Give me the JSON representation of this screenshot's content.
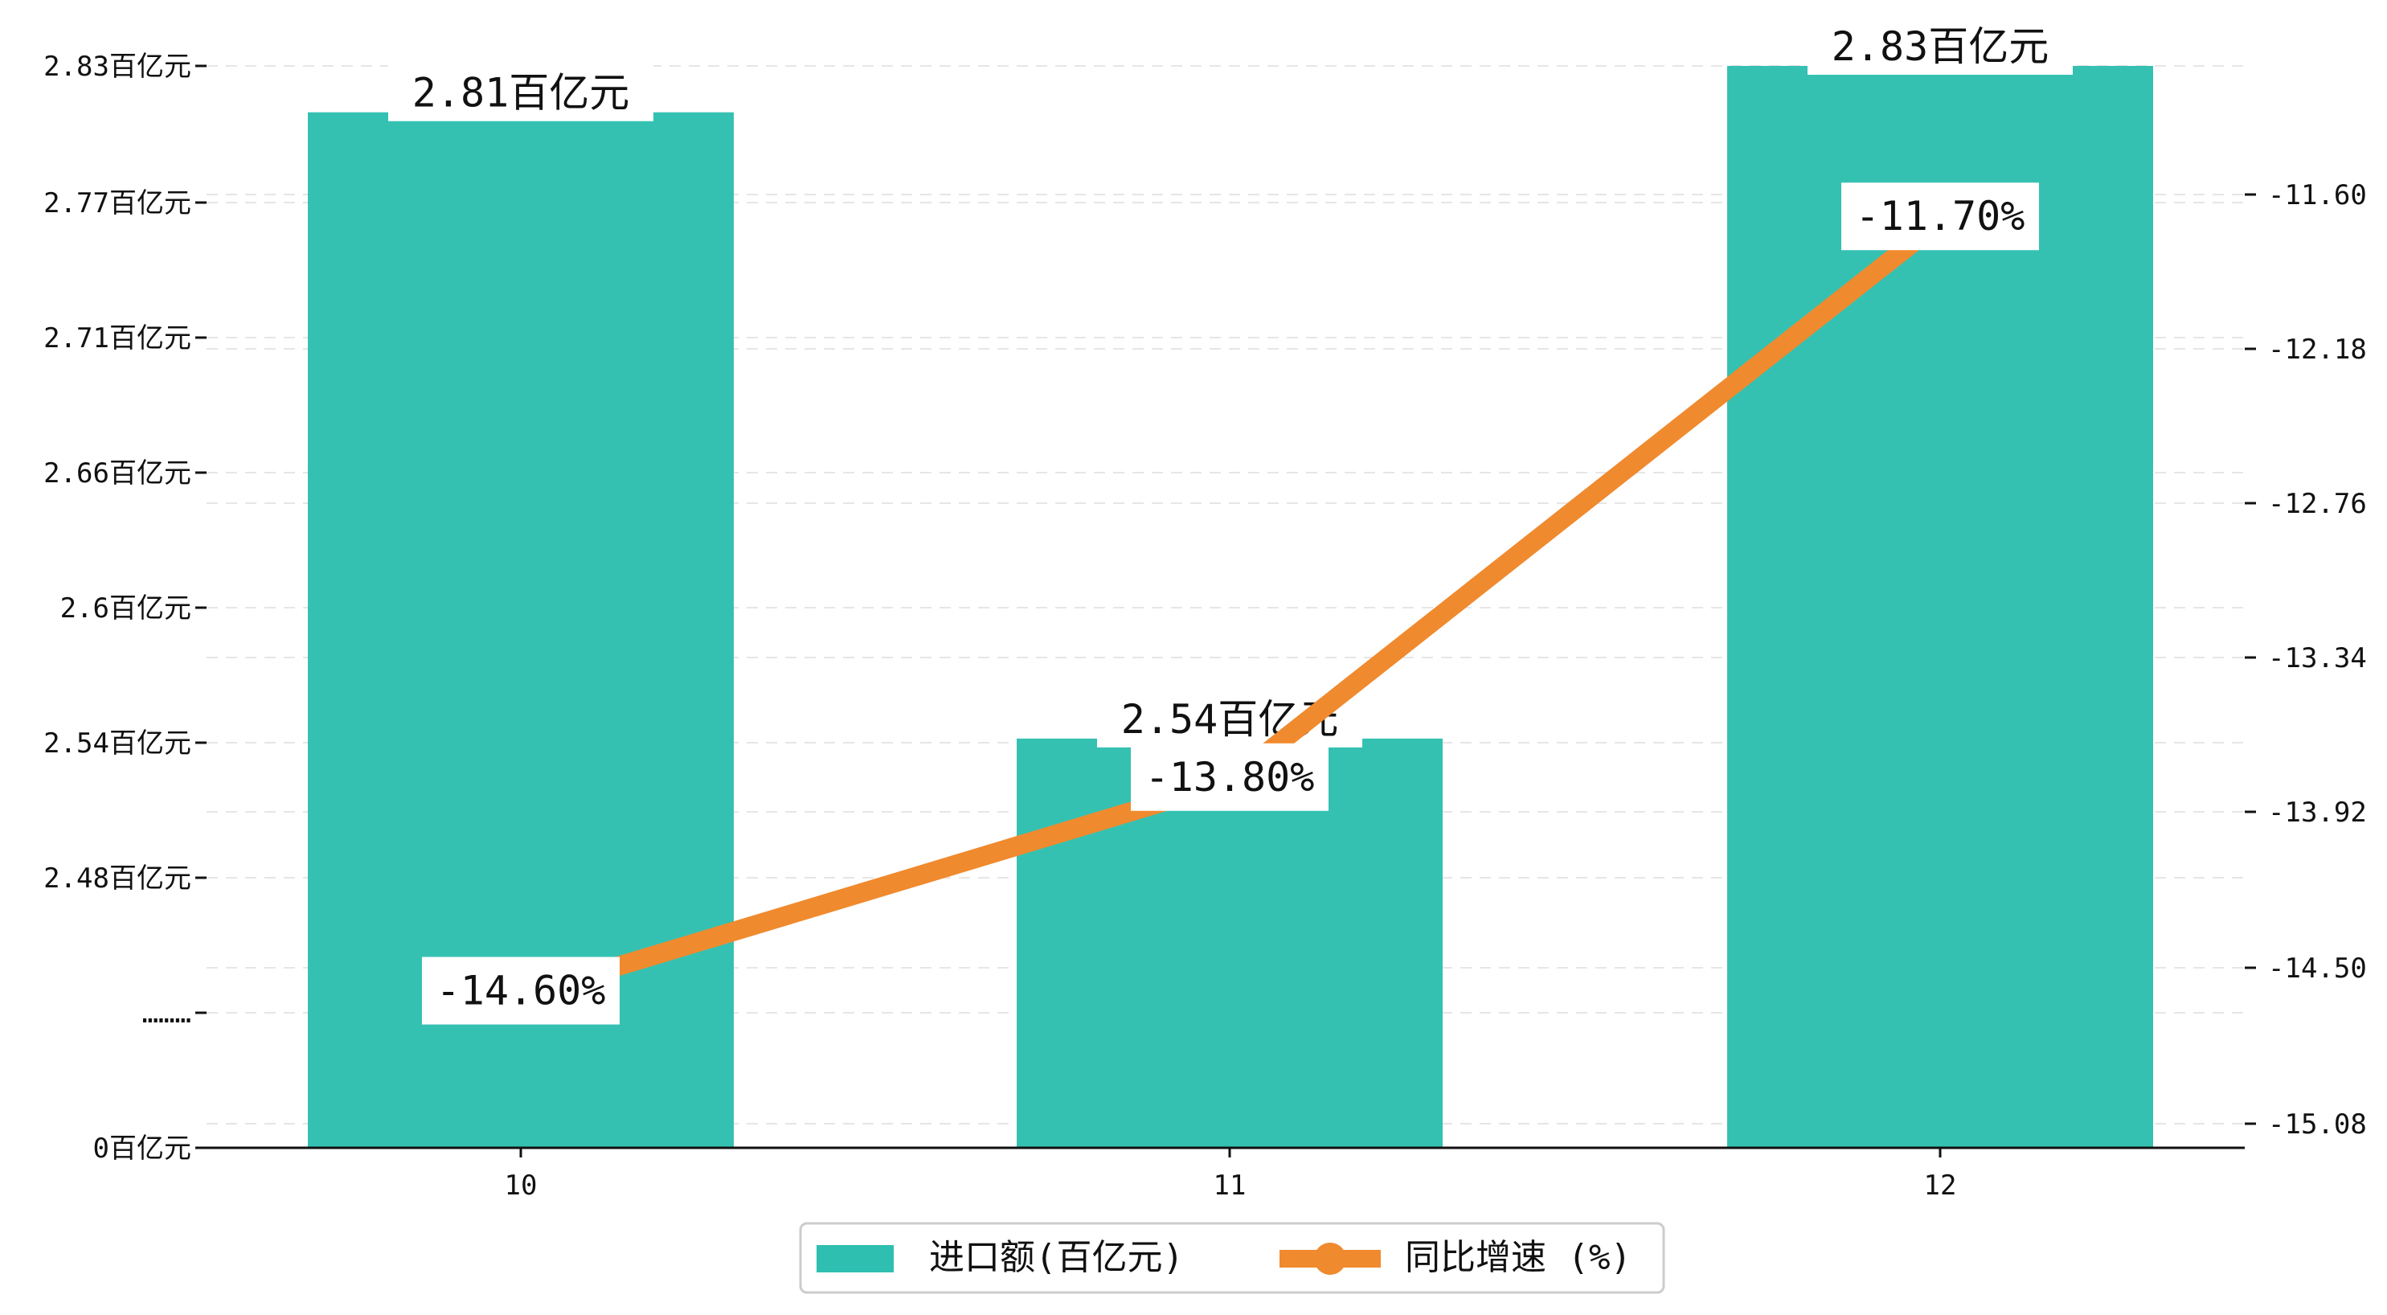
{
  "chart_data": {
    "type": "bar",
    "categories": [
      "10",
      "11",
      "12"
    ],
    "series": [
      {
        "name": "进口额(百亿元)",
        "kind": "bar",
        "axis": "left",
        "values": [
          2.81,
          2.54,
          2.83
        ],
        "labels": [
          "2.81百亿元",
          "2.54百亿元",
          "2.83百亿元"
        ],
        "color": "#2ebfb0"
      },
      {
        "name": "同比增速 (%)",
        "kind": "line",
        "axis": "right",
        "values": [
          -14.6,
          -13.8,
          -11.7
        ],
        "labels": [
          "-14.60%",
          "-13.80%",
          "-11.70%"
        ],
        "color": "#f08a2e"
      }
    ],
    "y_left": {
      "ticks": [
        {
          "label": "0百亿元",
          "value": 0
        },
        {
          "label": "………",
          "value": null
        },
        {
          "label": "2.48百亿元",
          "value": 2.48
        },
        {
          "label": "2.54百亿元",
          "value": 2.54
        },
        {
          "label": "2.6百亿元",
          "value": 2.6
        },
        {
          "label": "2.66百亿元",
          "value": 2.66
        },
        {
          "label": "2.71百亿元",
          "value": 2.71
        },
        {
          "label": "2.77百亿元",
          "value": 2.77
        },
        {
          "label": "2.83百亿元",
          "value": 2.83
        }
      ],
      "axis_break": true
    },
    "y_right": {
      "ticks": [
        "-15.08",
        "-14.50",
        "-13.92",
        "-13.34",
        "-12.76",
        "-12.18",
        "-11.60"
      ]
    },
    "legend": {
      "placement": "bottom-center"
    },
    "grid": true,
    "title": "",
    "xlabel": "",
    "ylabel": ""
  }
}
